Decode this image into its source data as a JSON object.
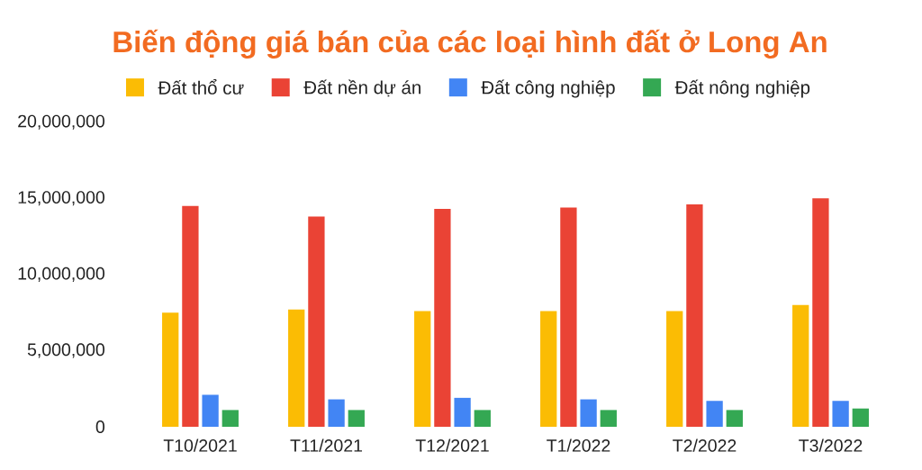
{
  "chart_data": {
    "type": "bar",
    "title": "Biến động giá bán của các loại hình đất ở Long An",
    "categories": [
      "T10/2021",
      "T11/2021",
      "T12/2021",
      "T1/2022",
      "T2/2022",
      "T3/2022"
    ],
    "series": [
      {
        "name": "Đất thổ cư",
        "color": "#fbbc04",
        "values": [
          7500000,
          7700000,
          7600000,
          7600000,
          7600000,
          8000000
        ]
      },
      {
        "name": "Đất nền dự án",
        "color": "#ea4335",
        "values": [
          14500000,
          13800000,
          14300000,
          14400000,
          14600000,
          15000000
        ]
      },
      {
        "name": "Đất công nghiệp",
        "color": "#4285f4",
        "values": [
          2100000,
          1800000,
          1900000,
          1800000,
          1700000,
          1700000
        ]
      },
      {
        "name": "Đất nông nghiệp",
        "color": "#34a853",
        "values": [
          1100000,
          1100000,
          1100000,
          1100000,
          1100000,
          1200000
        ]
      }
    ],
    "ylim": [
      0,
      20000000
    ],
    "yticks": [
      0,
      {
        "value": 5000000,
        "label": "5,000,000"
      },
      {
        "value": 10000000,
        "label": "10,000,000"
      },
      {
        "value": 15000000,
        "label": "15,000,000"
      },
      {
        "value": 20000000,
        "label": "20,000,000"
      }
    ],
    "legend": "top"
  }
}
